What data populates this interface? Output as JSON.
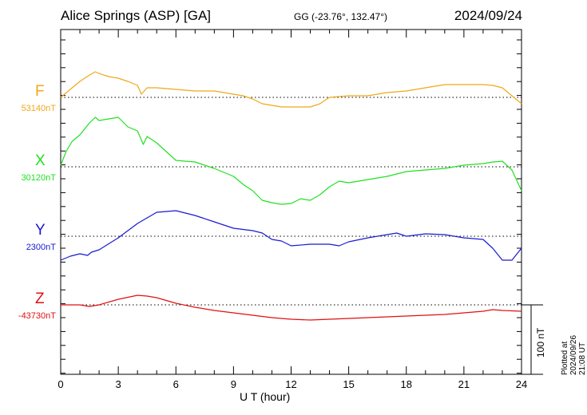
{
  "header": {
    "station": "Alice Springs (ASP)  [GA]",
    "coords": "GG (-23.76°, 132.47°)",
    "date": "2024/09/24"
  },
  "footer": {
    "plotted": "Plotted at 2024/09/26 21:08 UT"
  },
  "chart_data": {
    "type": "line",
    "title": "Alice Springs (ASP)  [GA]",
    "xlabel": "U T (hour)",
    "xlim": [
      0,
      24
    ],
    "xticks": [
      0,
      3,
      6,
      9,
      12,
      15,
      18,
      21,
      24
    ],
    "xtick_labels": [
      "0",
      "3",
      "6",
      "9",
      "12",
      "15",
      "18",
      "21",
      "24"
    ],
    "scale_bar": "100 nT",
    "grid": "dotted baselines",
    "series": [
      {
        "name": "F",
        "baseline_label": "53140nT",
        "baseline": 53140,
        "color": "#f0a818",
        "x": [
          0,
          0.5,
          1,
          1.5,
          1.8,
          2,
          2.5,
          3,
          3.5,
          4,
          4.2,
          4.5,
          5,
          6,
          7,
          8,
          9,
          9.5,
          10,
          10.5,
          11,
          11.5,
          12,
          13,
          13.5,
          14,
          15,
          16,
          17,
          18,
          19,
          20,
          21,
          22,
          22.5,
          23,
          23.5,
          24
        ],
        "y": [
          53140,
          53150,
          53160,
          53168,
          53172,
          53170,
          53166,
          53164,
          53160,
          53155,
          53144,
          53152,
          53152,
          53150,
          53148,
          53148,
          53144,
          53142,
          53138,
          53132,
          53130,
          53128,
          53128,
          53128,
          53132,
          53140,
          53142,
          53142,
          53146,
          53148,
          53152,
          53156,
          53156,
          53156,
          53155,
          53152,
          53142,
          53132
        ]
      },
      {
        "name": "X",
        "baseline_label": "30120nT",
        "baseline": 30120,
        "color": "#21e021",
        "x": [
          0,
          0.3,
          0.6,
          1,
          1.5,
          1.8,
          2,
          2.5,
          3,
          3.5,
          4,
          4.3,
          4.5,
          5,
          6,
          7,
          8,
          9,
          9.5,
          10,
          10.5,
          11,
          11.5,
          12,
          12.5,
          13,
          13.5,
          14,
          14.5,
          15,
          16,
          17,
          18,
          19,
          20,
          21,
          22,
          22.5,
          23,
          23.5,
          24
        ],
        "y": [
          30122,
          30140,
          30152,
          30160,
          30175,
          30182,
          30178,
          30180,
          30182,
          30170,
          30165,
          30148,
          30158,
          30150,
          30128,
          30126,
          30118,
          30108,
          30098,
          30090,
          30078,
          30075,
          30073,
          30074,
          30080,
          30078,
          30085,
          30095,
          30102,
          30100,
          30104,
          30108,
          30114,
          30116,
          30118,
          30122,
          30124,
          30126,
          30127,
          30116,
          30090
        ]
      },
      {
        "name": "Y",
        "baseline_label": "2300nT",
        "baseline": 2300,
        "color": "#1a1ad0",
        "x": [
          0,
          0.5,
          1,
          1.4,
          1.6,
          2,
          3,
          4,
          5,
          6,
          7,
          8,
          9,
          10,
          10.5,
          11,
          11.5,
          12,
          13,
          14,
          14.5,
          15,
          16,
          17,
          17.5,
          18,
          19,
          20,
          21,
          22,
          22.5,
          23,
          23.5,
          24
        ],
        "y": [
          2270,
          2275,
          2278,
          2276,
          2280,
          2283,
          2298,
          2316,
          2330,
          2332,
          2326,
          2318,
          2310,
          2307,
          2304,
          2296,
          2294,
          2288,
          2290,
          2290,
          2288,
          2293,
          2298,
          2302,
          2304,
          2300,
          2303,
          2302,
          2298,
          2296,
          2285,
          2270,
          2270,
          2285
        ]
      },
      {
        "name": "Z",
        "baseline_label": "-43730nT",
        "baseline": -43730,
        "color": "#e01010",
        "x": [
          0,
          1,
          1.5,
          2,
          3,
          4,
          4.5,
          5,
          6,
          7,
          8,
          9,
          10,
          11,
          12,
          13,
          14,
          15,
          16,
          17,
          18,
          19,
          20,
          21,
          22,
          22.5,
          23,
          24
        ],
        "y": [
          -43730,
          -43730,
          -43732,
          -43730,
          -43723,
          -43718,
          -43719,
          -43721,
          -43728,
          -43733,
          -43737,
          -43740,
          -43743,
          -43746,
          -43748,
          -43749,
          -43748,
          -43747,
          -43746,
          -43745,
          -43744,
          -43743,
          -43742,
          -43740,
          -43738,
          -43736,
          -43737,
          -43738
        ]
      }
    ]
  }
}
